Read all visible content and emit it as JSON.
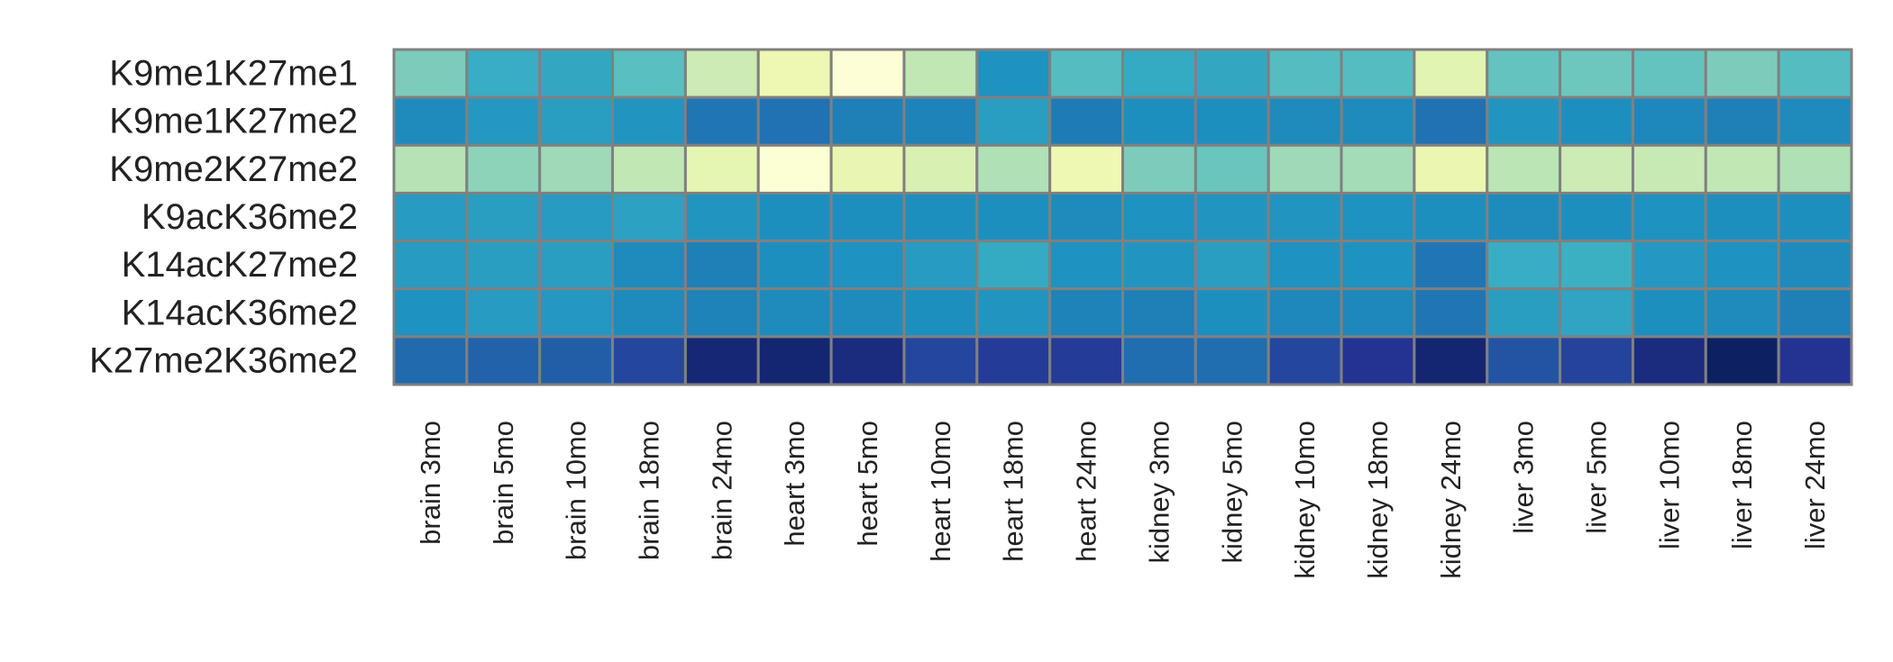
{
  "chart_data": {
    "type": "heatmap",
    "title": "",
    "xlabel": "",
    "ylabel": "",
    "legend": "none",
    "colormap": "YlGnBu",
    "value_range": [
      0,
      1
    ],
    "rows": [
      "K9me1K27me1",
      "K9me1K27me2",
      "K9me2K27me2",
      "K9acK36me2",
      "K14acK27me2",
      "K14acK36me2",
      "K27me2K36me2"
    ],
    "columns": [
      "brain 3mo",
      "brain 5mo",
      "brain 10mo",
      "brain 18mo",
      "brain 24mo",
      "heart 3mo",
      "heart 5mo",
      "heart 10mo",
      "heart 18mo",
      "heart 24mo",
      "kidney 3mo",
      "kidney 5mo",
      "kidney 10mo",
      "kidney 18mo",
      "kidney 24mo",
      "liver 3mo",
      "liver 5mo",
      "liver 10mo",
      "liver 18mo",
      "liver 24mo"
    ],
    "values": [
      [
        0.38,
        0.53,
        0.55,
        0.45,
        0.23,
        0.12,
        0.01,
        0.26,
        0.62,
        0.46,
        0.54,
        0.55,
        0.46,
        0.46,
        0.16,
        0.43,
        0.41,
        0.43,
        0.38,
        0.46
      ],
      [
        0.64,
        0.6,
        0.58,
        0.61,
        0.69,
        0.7,
        0.67,
        0.66,
        0.58,
        0.68,
        0.63,
        0.63,
        0.64,
        0.64,
        0.7,
        0.61,
        0.63,
        0.65,
        0.67,
        0.64
      ],
      [
        0.28,
        0.35,
        0.32,
        0.26,
        0.15,
        0.02,
        0.14,
        0.19,
        0.29,
        0.12,
        0.38,
        0.42,
        0.32,
        0.31,
        0.13,
        0.27,
        0.23,
        0.25,
        0.26,
        0.29
      ],
      [
        0.59,
        0.58,
        0.59,
        0.57,
        0.61,
        0.63,
        0.63,
        0.63,
        0.63,
        0.64,
        0.62,
        0.61,
        0.61,
        0.62,
        0.63,
        0.64,
        0.63,
        0.62,
        0.63,
        0.63
      ],
      [
        0.59,
        0.58,
        0.58,
        0.64,
        0.67,
        0.63,
        0.62,
        0.59,
        0.54,
        0.62,
        0.61,
        0.58,
        0.62,
        0.62,
        0.69,
        0.53,
        0.52,
        0.6,
        0.62,
        0.64
      ],
      [
        0.62,
        0.59,
        0.6,
        0.64,
        0.66,
        0.64,
        0.64,
        0.63,
        0.61,
        0.66,
        0.67,
        0.63,
        0.65,
        0.65,
        0.69,
        0.58,
        0.56,
        0.63,
        0.64,
        0.67
      ],
      [
        0.72,
        0.74,
        0.75,
        0.82,
        0.94,
        0.95,
        0.92,
        0.82,
        0.85,
        0.85,
        0.71,
        0.71,
        0.82,
        0.88,
        0.95,
        0.78,
        0.83,
        0.92,
        0.98,
        0.88
      ]
    ]
  }
}
